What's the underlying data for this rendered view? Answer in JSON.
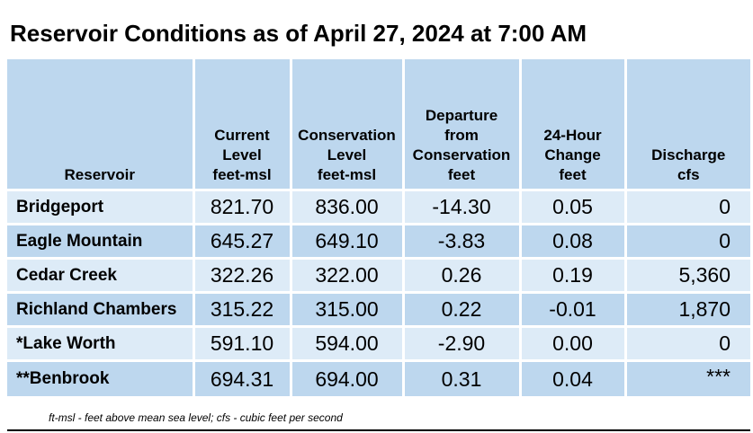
{
  "title": "Reservoir Conditions as of April 27, 2024 at 7:00 AM",
  "table": {
    "headers": [
      {
        "lines": [
          "Reservoir"
        ]
      },
      {
        "lines": [
          "Current",
          "Level",
          "feet-msl"
        ]
      },
      {
        "lines": [
          "Conservation",
          "Level",
          "feet-msl"
        ]
      },
      {
        "lines": [
          "Departure",
          "from",
          "Conservation",
          "feet"
        ]
      },
      {
        "lines": [
          "24-Hour",
          "Change",
          "feet"
        ]
      },
      {
        "lines": [
          "Discharge",
          "cfs"
        ]
      }
    ],
    "rows": [
      {
        "reservoir": "Bridgeport",
        "current": "821.70",
        "conservation": "836.00",
        "departure": "-14.30",
        "change": "0.05",
        "discharge": "0"
      },
      {
        "reservoir": "Eagle Mountain",
        "current": "645.27",
        "conservation": "649.10",
        "departure": "-3.83",
        "change": "0.08",
        "discharge": "0"
      },
      {
        "reservoir": "Cedar Creek",
        "current": "322.26",
        "conservation": "322.00",
        "departure": "0.26",
        "change": "0.19",
        "discharge": "5,360"
      },
      {
        "reservoir": "Richland Chambers",
        "current": "315.22",
        "conservation": "315.00",
        "departure": "0.22",
        "change": "-0.01",
        "discharge": "1,870"
      },
      {
        "reservoir": "*Lake Worth",
        "current": "591.10",
        "conservation": "594.00",
        "departure": "-2.90",
        "change": "0.00",
        "discharge": "0"
      },
      {
        "reservoir": "**Benbrook",
        "current": "694.31",
        "conservation": "694.00",
        "departure": "0.31",
        "change": "0.04",
        "discharge": "***"
      }
    ]
  },
  "footnote": "ft-msl - feet above mean sea level; cfs - cubic feet per second",
  "colors": {
    "header_bg": "#bdd7ee",
    "row_light": "#ddebf7",
    "row_dark": "#bdd7ee"
  }
}
